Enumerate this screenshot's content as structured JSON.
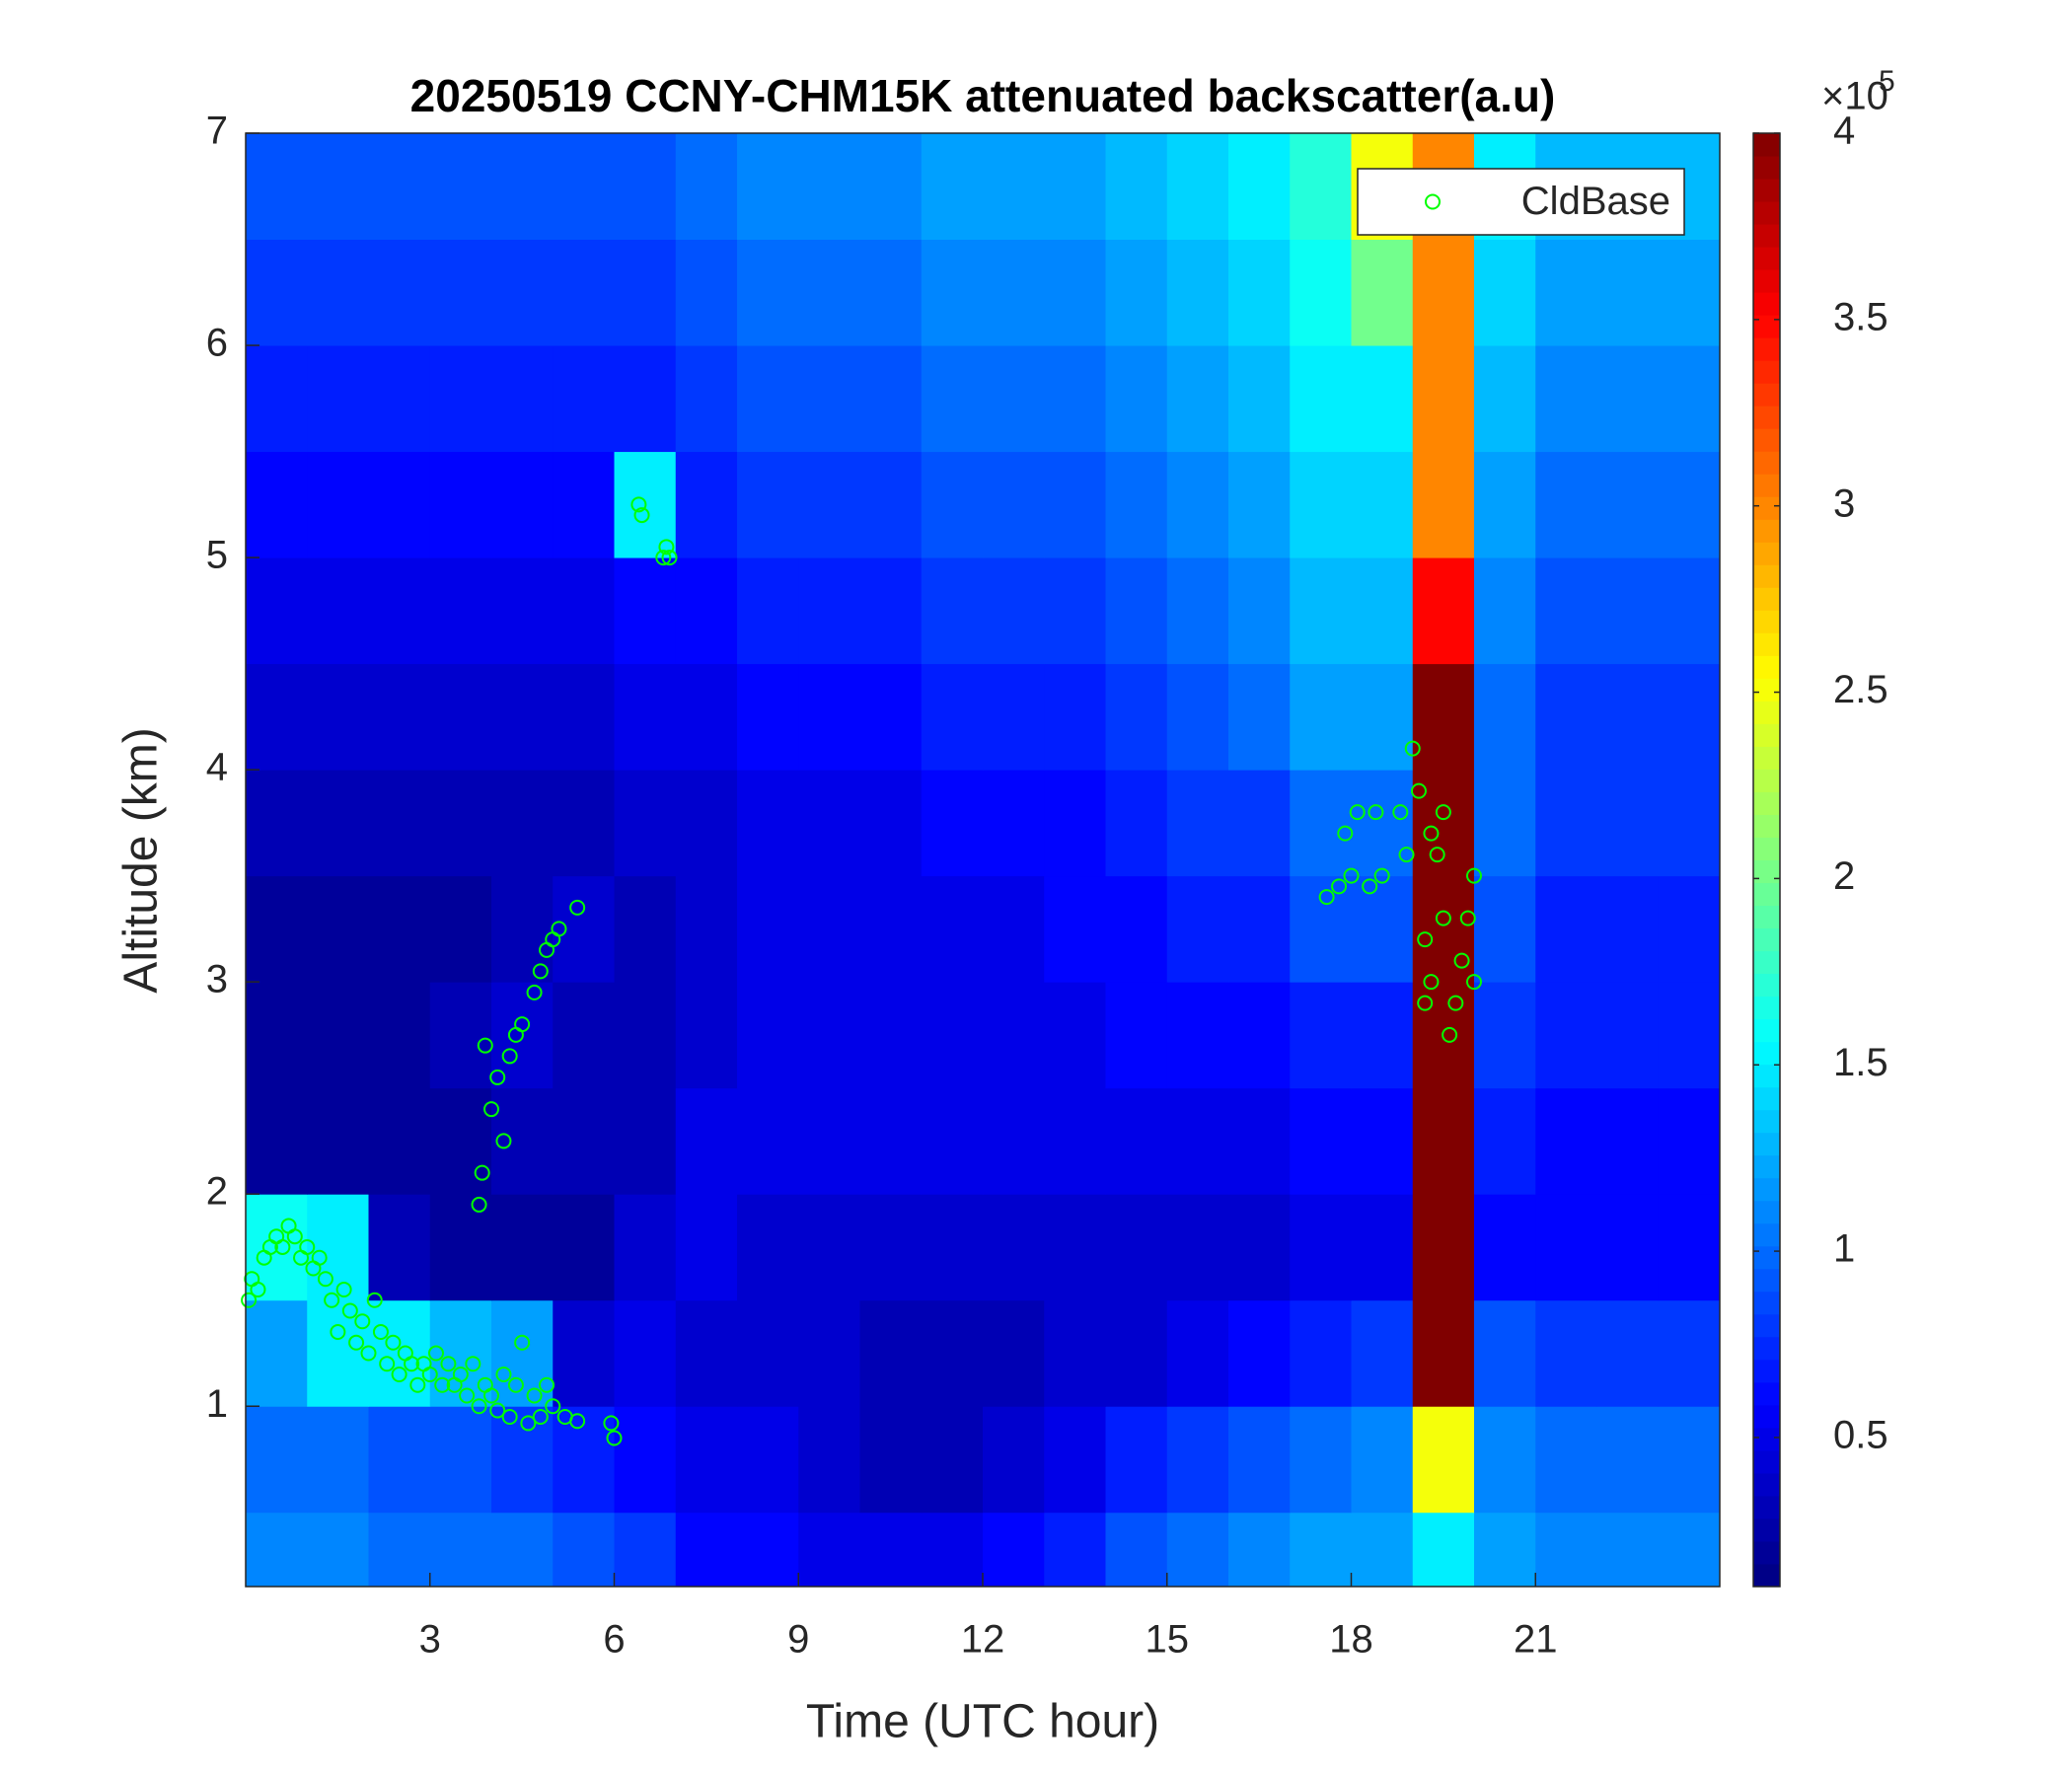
{
  "chart_data": {
    "type": "heatmap",
    "title": "20250519 CCNY-CHM15K attenuated backscatter(a.u)",
    "x_label": "Time (UTC hour)",
    "y_label": "Altitude (km)",
    "xlim": [
      0,
      24
    ],
    "ylim": [
      0.15,
      7
    ],
    "xticks": [
      3,
      6,
      9,
      12,
      15,
      18,
      21
    ],
    "yticks": [
      1,
      2,
      3,
      4,
      5,
      6,
      7
    ],
    "colormap": "jet",
    "clim": [
      0.1,
      4
    ],
    "colorbar_ticks": [
      0.5,
      1,
      1.5,
      2,
      2.5,
      3,
      3.5,
      4
    ],
    "colorbar_scale": {
      "base": "×10",
      "exponent": "5"
    },
    "legend_position": "upper right",
    "heatmap": {
      "x_edges": [
        0,
        1,
        2,
        3,
        4,
        5,
        6,
        7,
        8,
        9,
        10,
        11,
        12,
        13,
        14,
        15,
        16,
        17,
        18,
        19,
        20,
        21,
        22,
        23,
        24
      ],
      "y_edges": [
        0.15,
        0.5,
        1.0,
        1.5,
        2.0,
        2.5,
        3.0,
        3.5,
        4.0,
        4.5,
        5.0,
        5.5,
        6.0,
        6.5,
        7.0
      ],
      "values": [
        [
          1.1,
          1.1,
          1.0,
          1.0,
          1.0,
          0.9,
          0.8,
          0.6,
          0.6,
          0.5,
          0.5,
          0.5,
          0.6,
          0.7,
          0.9,
          1.0,
          1.1,
          1.2,
          1.2,
          1.5,
          1.2,
          1.1,
          1.1,
          1.1
        ],
        [
          1.0,
          1.0,
          0.9,
          0.9,
          0.8,
          0.7,
          0.6,
          0.5,
          0.5,
          0.4,
          0.3,
          0.3,
          0.4,
          0.5,
          0.7,
          0.8,
          0.9,
          1.0,
          1.1,
          2.5,
          1.1,
          1.0,
          1.0,
          1.0
        ],
        [
          1.2,
          1.5,
          1.5,
          1.3,
          1.2,
          0.4,
          0.5,
          0.4,
          0.4,
          0.4,
          0.3,
          0.3,
          0.3,
          0.4,
          0.4,
          0.5,
          0.6,
          0.7,
          0.8,
          4.0,
          0.9,
          0.8,
          0.8,
          0.8
        ],
        [
          1.6,
          1.5,
          0.3,
          0.2,
          0.2,
          0.2,
          0.4,
          0.5,
          0.4,
          0.4,
          0.4,
          0.4,
          0.4,
          0.4,
          0.4,
          0.4,
          0.4,
          0.5,
          0.5,
          4.0,
          0.6,
          0.6,
          0.6,
          0.6
        ],
        [
          0.2,
          0.2,
          0.2,
          0.2,
          0.3,
          0.3,
          0.3,
          0.5,
          0.5,
          0.5,
          0.5,
          0.5,
          0.5,
          0.5,
          0.5,
          0.5,
          0.5,
          0.6,
          0.6,
          4.0,
          0.7,
          0.6,
          0.6,
          0.6
        ],
        [
          0.2,
          0.2,
          0.2,
          0.3,
          0.4,
          0.3,
          0.3,
          0.4,
          0.5,
          0.5,
          0.5,
          0.5,
          0.5,
          0.5,
          0.6,
          0.6,
          0.6,
          0.7,
          0.7,
          4.0,
          0.8,
          0.7,
          0.7,
          0.7
        ],
        [
          0.2,
          0.2,
          0.2,
          0.2,
          0.3,
          0.4,
          0.3,
          0.4,
          0.5,
          0.5,
          0.5,
          0.5,
          0.5,
          0.6,
          0.6,
          0.7,
          0.7,
          0.9,
          0.9,
          4.0,
          0.9,
          0.7,
          0.7,
          0.7
        ],
        [
          0.3,
          0.3,
          0.3,
          0.3,
          0.3,
          0.3,
          0.4,
          0.4,
          0.5,
          0.5,
          0.5,
          0.6,
          0.6,
          0.6,
          0.7,
          0.8,
          0.8,
          1.0,
          1.0,
          4.0,
          1.0,
          0.8,
          0.8,
          0.8
        ],
        [
          0.4,
          0.4,
          0.4,
          0.4,
          0.4,
          0.4,
          0.5,
          0.5,
          0.6,
          0.6,
          0.6,
          0.7,
          0.7,
          0.7,
          0.8,
          0.9,
          1.0,
          1.2,
          1.2,
          4.0,
          1.0,
          0.8,
          0.8,
          0.8
        ],
        [
          0.5,
          0.5,
          0.5,
          0.5,
          0.5,
          0.5,
          0.6,
          0.6,
          0.7,
          0.7,
          0.7,
          0.8,
          0.8,
          0.8,
          0.9,
          1.0,
          1.1,
          1.3,
          1.3,
          3.5,
          1.1,
          0.9,
          0.9,
          0.9
        ],
        [
          0.6,
          0.6,
          0.6,
          0.6,
          0.6,
          0.6,
          1.5,
          0.7,
          0.8,
          0.8,
          0.8,
          0.9,
          0.9,
          0.9,
          1.0,
          1.1,
          1.2,
          1.4,
          1.4,
          3.0,
          1.2,
          1.0,
          1.0,
          1.0
        ],
        [
          0.7,
          0.7,
          0.7,
          0.7,
          0.7,
          0.7,
          0.7,
          0.8,
          0.9,
          0.9,
          0.9,
          1.0,
          1.0,
          1.0,
          1.1,
          1.2,
          1.3,
          1.5,
          1.5,
          3.0,
          1.3,
          1.1,
          1.1,
          1.1
        ],
        [
          0.8,
          0.8,
          0.8,
          0.8,
          0.8,
          0.8,
          0.8,
          0.9,
          1.0,
          1.0,
          1.0,
          1.1,
          1.1,
          1.1,
          1.2,
          1.3,
          1.4,
          1.6,
          2.0,
          3.0,
          1.4,
          1.2,
          1.2,
          1.2
        ],
        [
          0.9,
          0.9,
          0.9,
          0.9,
          0.9,
          0.9,
          0.9,
          1.0,
          1.1,
          1.1,
          1.1,
          1.2,
          1.2,
          1.2,
          1.3,
          1.4,
          1.5,
          1.7,
          2.5,
          3.0,
          1.5,
          1.3,
          1.3,
          1.3
        ]
      ]
    },
    "series": [
      {
        "name": "CldBase",
        "type": "scatter",
        "color": "#00ff00",
        "x": [
          0.05,
          0.1,
          0.2,
          0.3,
          0.4,
          0.5,
          0.6,
          0.7,
          0.8,
          0.9,
          1.0,
          1.1,
          1.2,
          1.3,
          1.4,
          1.5,
          1.6,
          1.7,
          1.8,
          1.9,
          2.0,
          2.1,
          2.2,
          2.3,
          2.4,
          2.5,
          2.6,
          2.7,
          2.8,
          2.9,
          3.0,
          3.1,
          3.2,
          3.3,
          3.4,
          3.5,
          3.6,
          3.7,
          3.8,
          3.9,
          4.0,
          4.1,
          4.2,
          4.3,
          4.4,
          4.5,
          4.6,
          4.7,
          4.8,
          4.9,
          5.0,
          5.2,
          5.4,
          5.95,
          6.0,
          3.8,
          3.85,
          3.9,
          4.0,
          4.1,
          4.2,
          4.3,
          4.4,
          4.5,
          4.7,
          4.8,
          4.9,
          5.0,
          5.1,
          5.4,
          6.4,
          6.45,
          6.8,
          6.85,
          6.9,
          17.6,
          17.8,
          17.9,
          18.0,
          18.1,
          18.3,
          18.4,
          18.5,
          18.8,
          18.9,
          19.0,
          19.1,
          19.2,
          19.2,
          19.3,
          19.4,
          19.5,
          19.6,
          19.7,
          19.8,
          19.9,
          20.0,
          20.0,
          19.5,
          19.3
        ],
        "y": [
          1.5,
          1.6,
          1.55,
          1.7,
          1.75,
          1.8,
          1.75,
          1.85,
          1.8,
          1.7,
          1.75,
          1.65,
          1.7,
          1.6,
          1.5,
          1.35,
          1.55,
          1.45,
          1.3,
          1.4,
          1.25,
          1.5,
          1.35,
          1.2,
          1.3,
          1.15,
          1.25,
          1.2,
          1.1,
          1.2,
          1.15,
          1.25,
          1.1,
          1.2,
          1.1,
          1.15,
          1.05,
          1.2,
          1.0,
          1.1,
          1.05,
          0.98,
          1.15,
          0.95,
          1.1,
          1.3,
          0.92,
          1.05,
          0.95,
          1.1,
          1.0,
          0.95,
          0.93,
          0.92,
          0.85,
          1.95,
          2.1,
          2.7,
          2.4,
          2.55,
          2.25,
          2.65,
          2.75,
          2.8,
          2.95,
          3.05,
          3.15,
          3.2,
          3.25,
          3.35,
          5.25,
          5.2,
          5.0,
          5.05,
          5.0,
          3.4,
          3.45,
          3.7,
          3.5,
          3.8,
          3.45,
          3.8,
          3.5,
          3.8,
          3.6,
          4.1,
          3.9,
          3.2,
          2.9,
          3.0,
          3.6,
          3.3,
          2.75,
          2.9,
          3.1,
          3.3,
          3.5,
          3.0,
          3.8,
          3.7
        ]
      }
    ]
  }
}
